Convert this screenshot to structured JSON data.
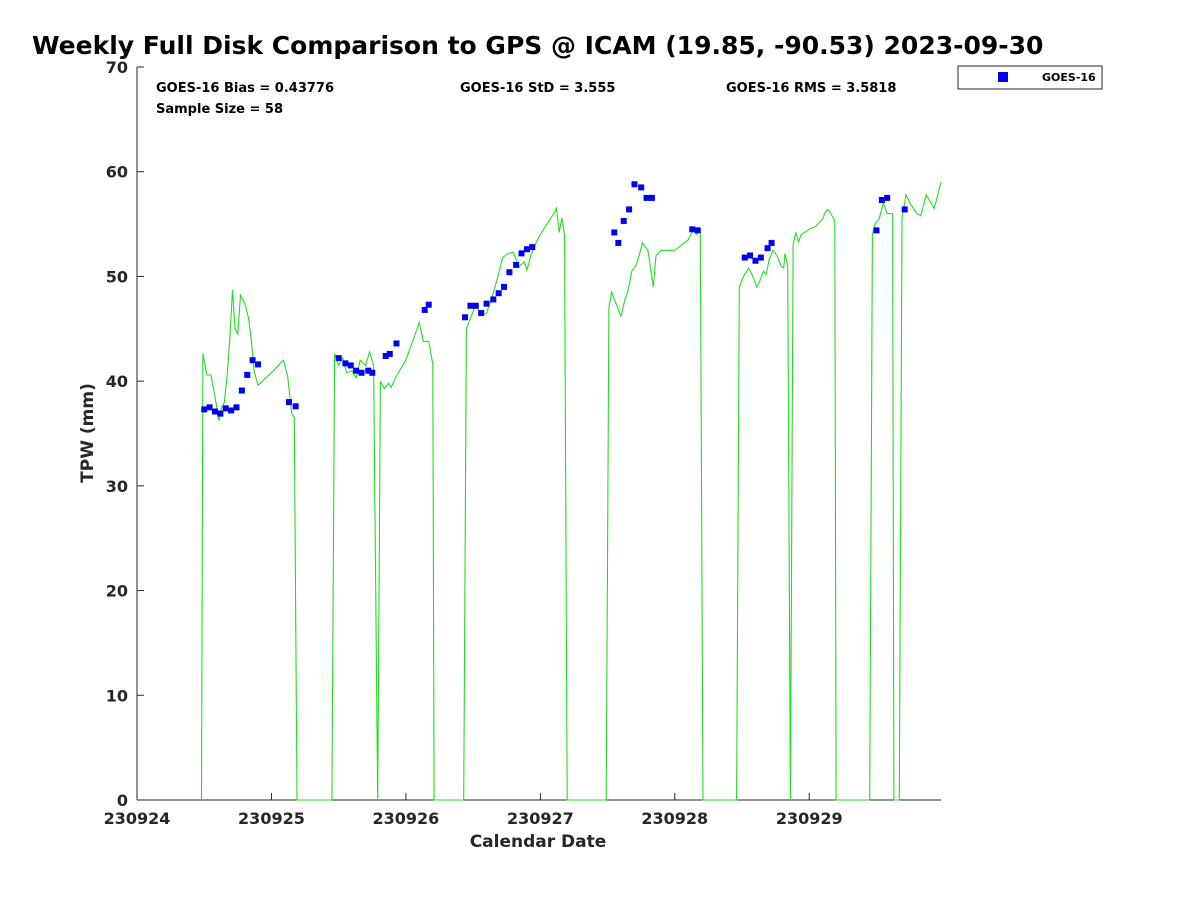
{
  "chart_data": {
    "type": "scatter",
    "title": "Weekly Full Disk Comparison to GPS @ ICAM (19.85, -90.53) 2023-09-30",
    "xlabel": "Calendar Date",
    "ylabel": "TPW (mm)",
    "xlim": [
      0,
      5.98
    ],
    "ylim": [
      0,
      70
    ],
    "x_ticks": [
      {
        "value": 0,
        "label": "230924"
      },
      {
        "value": 1,
        "label": "230925"
      },
      {
        "value": 2,
        "label": "230926"
      },
      {
        "value": 3,
        "label": "230927"
      },
      {
        "value": 4,
        "label": "230928"
      },
      {
        "value": 5,
        "label": "230929"
      }
    ],
    "y_ticks": [
      0,
      10,
      20,
      30,
      40,
      50,
      60,
      70
    ],
    "stats": {
      "bias": "GOES-16 Bias = 0.43776",
      "std": "GOES-16 StD = 3.555",
      "rms": "GOES-16 RMS = 3.5818",
      "sample": "Sample Size = 58"
    },
    "legend": {
      "position": "top-right",
      "entries": [
        "GOES-16"
      ]
    },
    "colors": {
      "goes": "#0000ee",
      "gps": "#22dd22",
      "axis": "#262626"
    },
    "series": [
      {
        "name": "GOES-16",
        "kind": "scatter",
        "points": [
          [
            0.5,
            37.3
          ],
          [
            0.54,
            37.5
          ],
          [
            0.58,
            37.1
          ],
          [
            0.62,
            36.9
          ],
          [
            0.66,
            37.4
          ],
          [
            0.7,
            37.2
          ],
          [
            0.74,
            37.5
          ],
          [
            0.78,
            39.1
          ],
          [
            0.82,
            40.6
          ],
          [
            0.86,
            42.0
          ],
          [
            0.9,
            41.6
          ],
          [
            1.13,
            38.0
          ],
          [
            1.18,
            37.6
          ],
          [
            1.5,
            42.2
          ],
          [
            1.55,
            41.7
          ],
          [
            1.59,
            41.5
          ],
          [
            1.63,
            41.0
          ],
          [
            1.67,
            40.8
          ],
          [
            1.72,
            41.0
          ],
          [
            1.75,
            40.8
          ],
          [
            1.85,
            42.4
          ],
          [
            1.88,
            42.6
          ],
          [
            1.93,
            43.6
          ],
          [
            2.14,
            46.8
          ],
          [
            2.17,
            47.3
          ],
          [
            2.44,
            46.1
          ],
          [
            2.48,
            47.2
          ],
          [
            2.52,
            47.2
          ],
          [
            2.56,
            46.5
          ],
          [
            2.6,
            47.4
          ],
          [
            2.65,
            47.8
          ],
          [
            2.69,
            48.4
          ],
          [
            2.73,
            49.0
          ],
          [
            2.77,
            50.4
          ],
          [
            2.82,
            51.1
          ],
          [
            2.86,
            52.2
          ],
          [
            2.9,
            52.6
          ],
          [
            2.94,
            52.8
          ],
          [
            3.55,
            54.2
          ],
          [
            3.58,
            53.2
          ],
          [
            3.62,
            55.3
          ],
          [
            3.66,
            56.4
          ],
          [
            3.7,
            58.8
          ],
          [
            3.75,
            58.5
          ],
          [
            3.79,
            57.5
          ],
          [
            3.83,
            57.5
          ],
          [
            4.13,
            54.5
          ],
          [
            4.17,
            54.4
          ],
          [
            4.52,
            51.8
          ],
          [
            4.56,
            52.0
          ],
          [
            4.6,
            51.5
          ],
          [
            4.64,
            51.8
          ],
          [
            4.69,
            52.7
          ],
          [
            4.72,
            53.2
          ],
          [
            5.5,
            54.4
          ],
          [
            5.54,
            57.3
          ],
          [
            5.58,
            57.5
          ],
          [
            5.71,
            56.4
          ]
        ]
      },
      {
        "kind": "line",
        "points": [
          [
            0.48,
            0
          ],
          [
            0.49,
            42.6
          ],
          [
            0.52,
            40.6
          ],
          [
            0.55,
            40.6
          ],
          [
            0.58,
            38.5
          ],
          [
            0.61,
            36.2
          ],
          [
            0.63,
            37.5
          ],
          [
            0.65,
            38.0
          ],
          [
            0.67,
            40.5
          ],
          [
            0.69,
            44.0
          ],
          [
            0.71,
            48.7
          ],
          [
            0.73,
            45.0
          ],
          [
            0.75,
            44.5
          ],
          [
            0.77,
            48.2
          ],
          [
            0.8,
            47.5
          ],
          [
            0.83,
            46.0
          ],
          [
            0.85,
            44.0
          ],
          [
            0.87,
            41.0
          ],
          [
            0.9,
            39.6
          ],
          [
            1.0,
            40.8
          ],
          [
            1.09,
            42.0
          ],
          [
            1.12,
            40.5
          ],
          [
            1.15,
            37.0
          ],
          [
            1.17,
            36.5
          ],
          [
            1.19,
            0
          ],
          [
            1.45,
            0
          ],
          [
            1.47,
            42.6
          ],
          [
            1.5,
            41.5
          ],
          [
            1.53,
            42.2
          ],
          [
            1.56,
            40.8
          ],
          [
            1.6,
            41.0
          ],
          [
            1.63,
            40.3
          ],
          [
            1.66,
            42.0
          ],
          [
            1.7,
            41.5
          ],
          [
            1.73,
            42.8
          ],
          [
            1.76,
            41.5
          ],
          [
            1.79,
            0
          ],
          [
            1.81,
            40.0
          ],
          [
            1.84,
            39.3
          ],
          [
            1.87,
            39.8
          ],
          [
            1.89,
            39.4
          ],
          [
            1.93,
            40.5
          ],
          [
            2.0,
            42.0
          ],
          [
            2.1,
            45.6
          ],
          [
            2.13,
            43.8
          ],
          [
            2.17,
            43.8
          ],
          [
            2.2,
            41.6
          ],
          [
            2.21,
            0
          ],
          [
            2.43,
            0
          ],
          [
            2.45,
            45.0
          ],
          [
            2.48,
            46.0
          ],
          [
            2.52,
            47.3
          ],
          [
            2.56,
            46.3
          ],
          [
            2.6,
            46.5
          ],
          [
            2.64,
            48.0
          ],
          [
            2.68,
            49.8
          ],
          [
            2.72,
            51.8
          ],
          [
            2.76,
            52.2
          ],
          [
            2.8,
            52.3
          ],
          [
            2.84,
            50.9
          ],
          [
            2.88,
            51.4
          ],
          [
            2.9,
            50.6
          ],
          [
            2.93,
            52.0
          ],
          [
            2.96,
            53.0
          ],
          [
            3.0,
            54.0
          ],
          [
            3.05,
            55.0
          ],
          [
            3.1,
            56.0
          ],
          [
            3.12,
            56.5
          ],
          [
            3.14,
            54.2
          ],
          [
            3.16,
            55.6
          ],
          [
            3.18,
            54.0
          ],
          [
            3.2,
            0
          ],
          [
            3.49,
            0
          ],
          [
            3.51,
            47.0
          ],
          [
            3.53,
            48.5
          ],
          [
            3.56,
            47.5
          ],
          [
            3.6,
            46.2
          ],
          [
            3.63,
            47.8
          ],
          [
            3.65,
            48.5
          ],
          [
            3.68,
            50.5
          ],
          [
            3.71,
            51.0
          ],
          [
            3.73,
            51.8
          ],
          [
            3.76,
            53.2
          ],
          [
            3.8,
            52.5
          ],
          [
            3.84,
            49.0
          ],
          [
            3.86,
            52.0
          ],
          [
            3.9,
            52.5
          ],
          [
            4.0,
            52.5
          ],
          [
            4.1,
            53.5
          ],
          [
            4.14,
            54.5
          ],
          [
            4.16,
            54.0
          ],
          [
            4.19,
            54.5
          ],
          [
            4.21,
            0
          ],
          [
            4.46,
            0
          ],
          [
            4.48,
            49.0
          ],
          [
            4.51,
            50.0
          ],
          [
            4.55,
            50.8
          ],
          [
            4.58,
            50.0
          ],
          [
            4.61,
            49.0
          ],
          [
            4.63,
            49.5
          ],
          [
            4.66,
            50.5
          ],
          [
            4.68,
            50.2
          ],
          [
            4.7,
            51.5
          ],
          [
            4.73,
            52.5
          ],
          [
            4.76,
            52.0
          ],
          [
            4.79,
            51.0
          ],
          [
            4.81,
            50.8
          ],
          [
            4.82,
            52.2
          ],
          [
            4.84,
            51.0
          ],
          [
            4.86,
            0
          ],
          [
            4.88,
            53.0
          ],
          [
            4.9,
            54.2
          ],
          [
            4.92,
            53.3
          ],
          [
            4.94,
            54.0
          ],
          [
            5.0,
            54.5
          ],
          [
            5.05,
            54.8
          ],
          [
            5.1,
            55.5
          ],
          [
            5.12,
            56.2
          ],
          [
            5.14,
            56.4
          ],
          [
            5.16,
            56.0
          ],
          [
            5.19,
            55.3
          ],
          [
            5.2,
            0
          ],
          [
            5.45,
            0
          ],
          [
            5.47,
            54.0
          ],
          [
            5.49,
            55.0
          ],
          [
            5.52,
            55.5
          ],
          [
            5.55,
            57.0
          ],
          [
            5.58,
            56.0
          ],
          [
            5.62,
            56.0
          ],
          [
            5.63,
            0
          ],
          [
            5.67,
            0
          ],
          [
            5.69,
            55.5
          ],
          [
            5.72,
            57.8
          ],
          [
            5.75,
            57.0
          ],
          [
            5.8,
            56.0
          ],
          [
            5.83,
            55.8
          ],
          [
            5.87,
            57.8
          ],
          [
            5.93,
            56.5
          ],
          [
            5.98,
            59.0
          ]
        ]
      }
    ]
  }
}
